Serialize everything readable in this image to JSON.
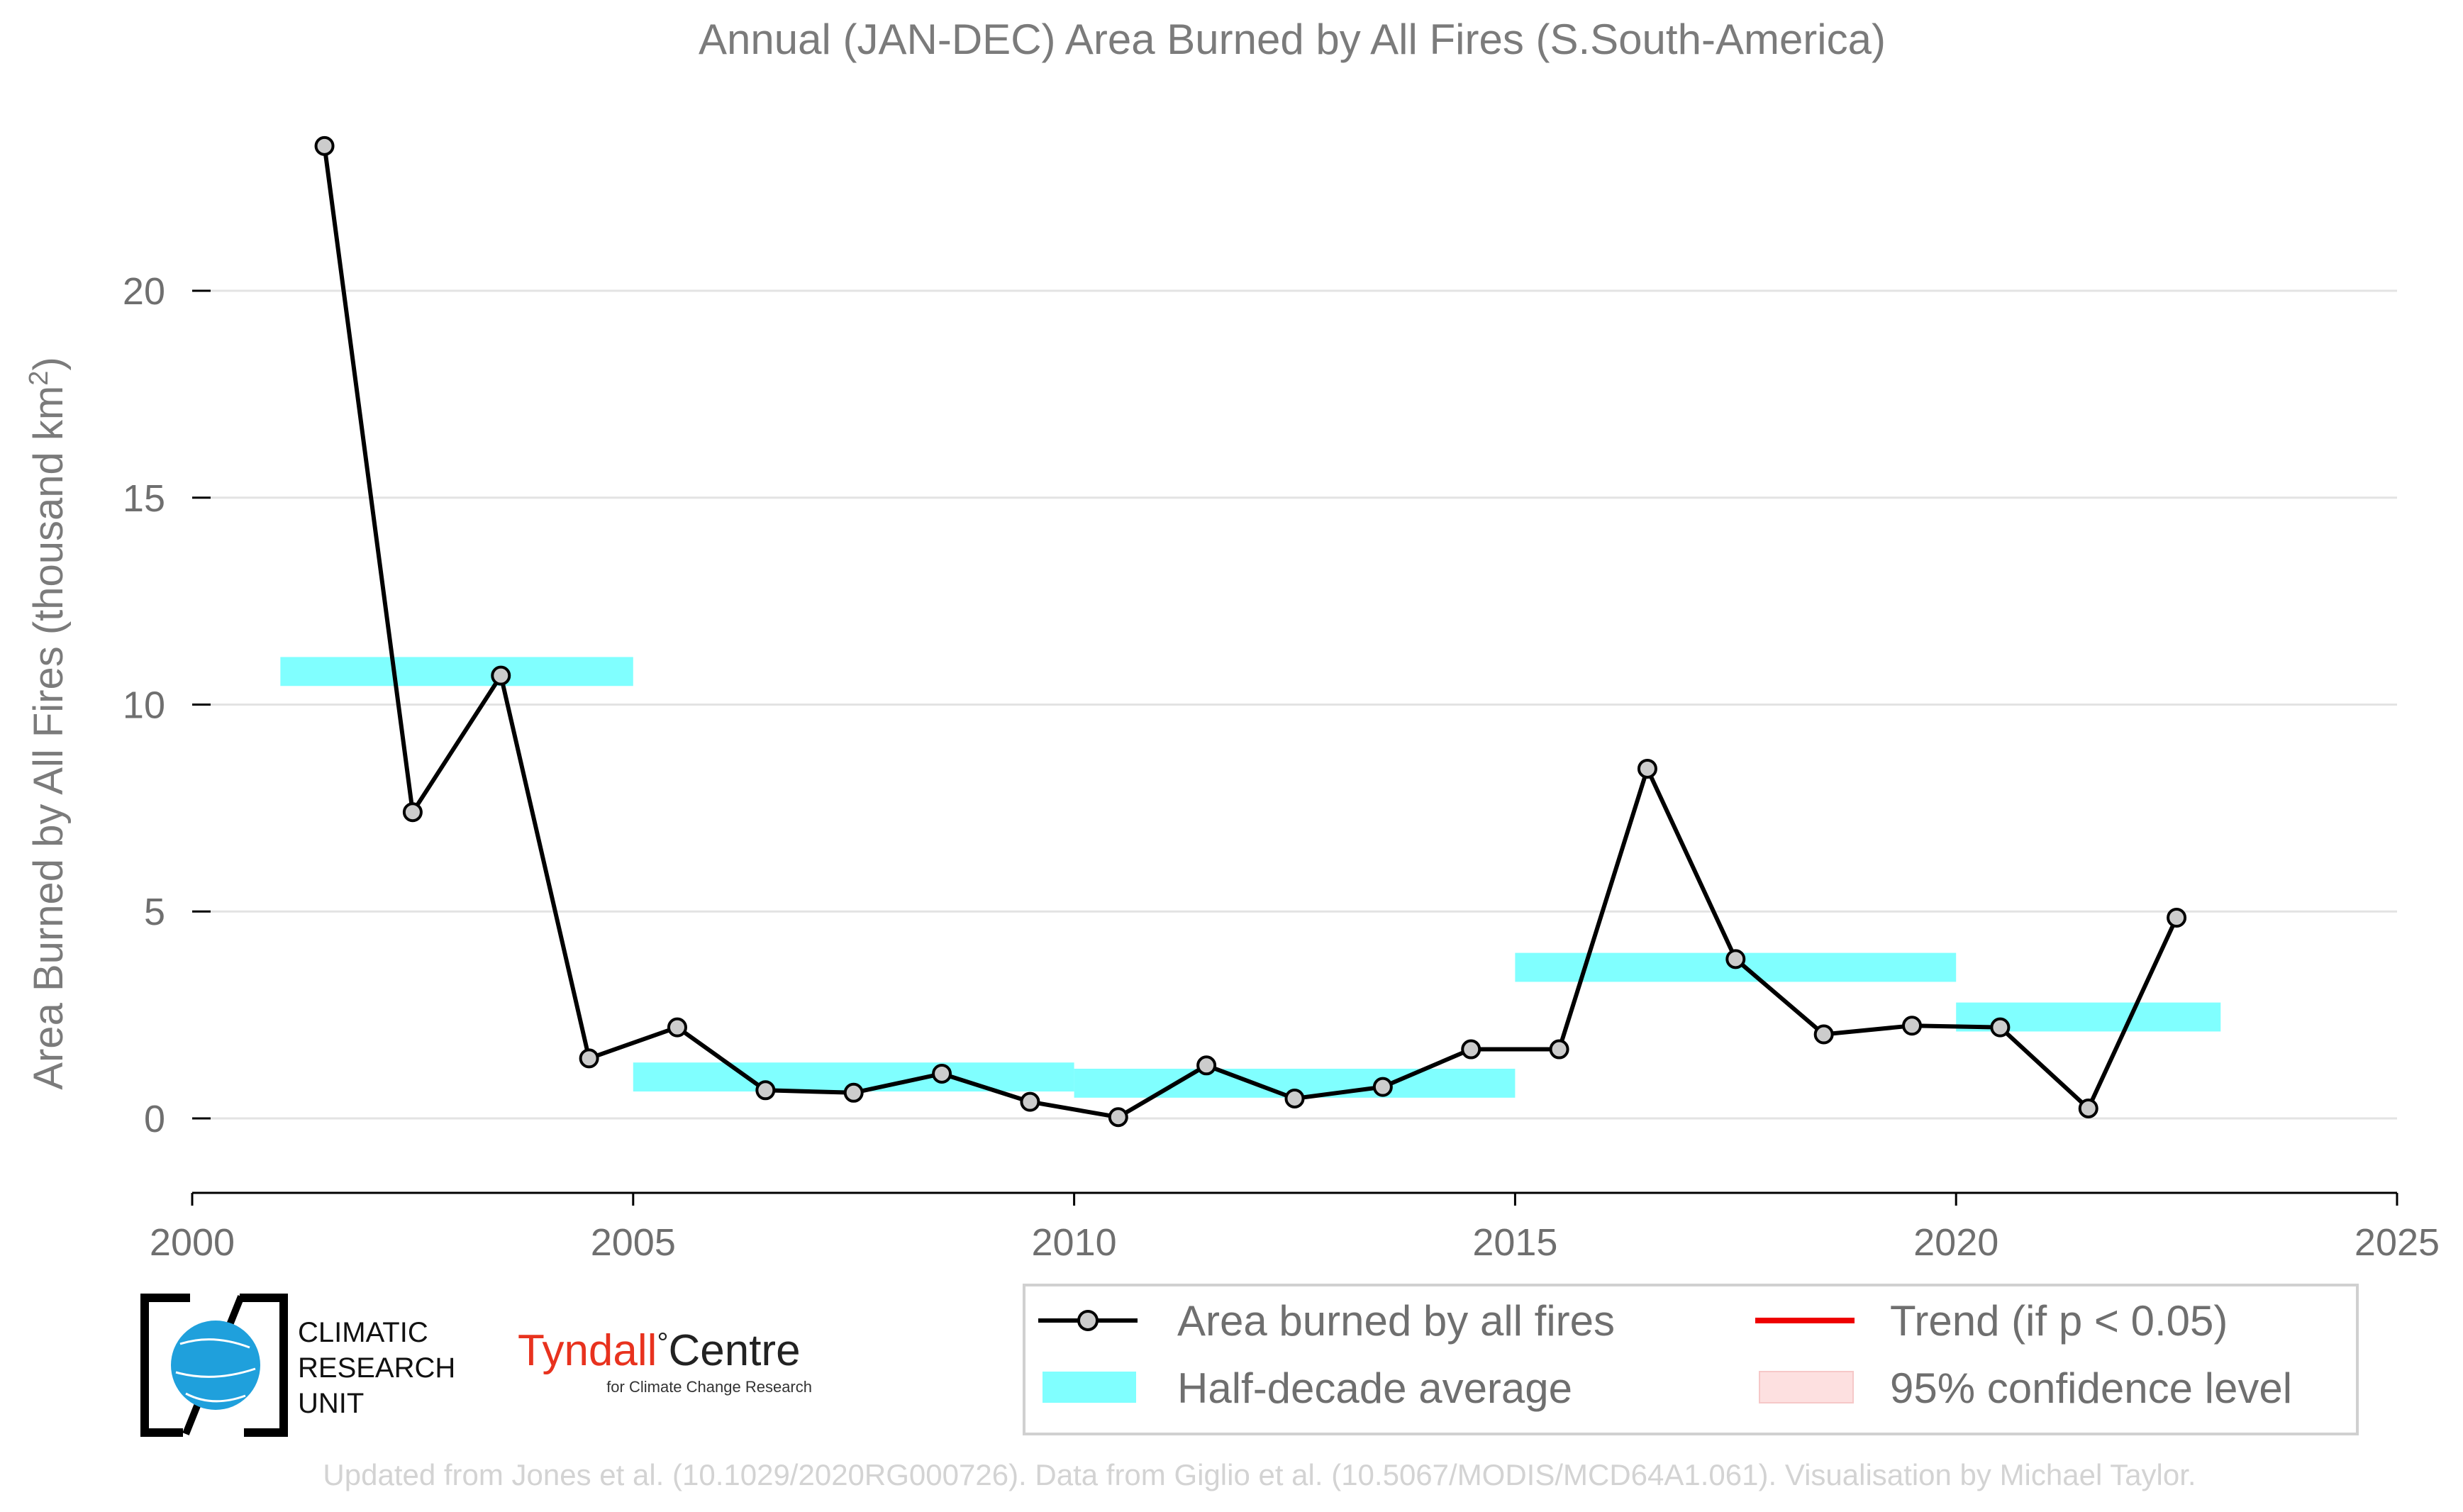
{
  "chart_data": {
    "type": "line",
    "title": "Annual (JAN-DEC) Area Burned by All Fires (S.South-America)",
    "xlabel": "",
    "ylabel": "Area Burned by All Fires (thousand km",
    "ylabel_sup": "2",
    "ylabel_close": ")",
    "xlim": [
      2000,
      2025
    ],
    "ylim": [
      -1.8,
      24.8
    ],
    "x_ticks": [
      2000,
      2005,
      2010,
      2015,
      2020,
      2025
    ],
    "y_ticks": [
      0,
      5,
      10,
      15,
      20
    ],
    "grid": true,
    "legend_position": "bottom-right",
    "series": [
      {
        "name": "Area burned by all fires",
        "type": "line",
        "color": "#000000",
        "marker_fill": "#cccccc",
        "x": [
          2001.5,
          2002.5,
          2003.5,
          2004.5,
          2005.5,
          2006.5,
          2007.5,
          2008.5,
          2009.5,
          2010.5,
          2011.5,
          2012.5,
          2013.5,
          2014.5,
          2015.5,
          2016.5,
          2017.5,
          2018.5,
          2019.5,
          2020.5,
          2021.5,
          2022.5
        ],
        "values": [
          23.5,
          7.4,
          10.7,
          1.45,
          2.2,
          0.68,
          0.62,
          1.08,
          0.4,
          0.03,
          1.28,
          0.48,
          0.76,
          1.67,
          1.67,
          8.45,
          3.85,
          2.03,
          2.24,
          2.2,
          0.24,
          4.85
        ]
      },
      {
        "name": "Half-decade average",
        "type": "band",
        "color": "#80ffff",
        "segments": [
          {
            "x_start": 2001,
            "x_end": 2005,
            "value": 10.8
          },
          {
            "x_start": 2005,
            "x_end": 2010,
            "value": 1.0
          },
          {
            "x_start": 2010,
            "x_end": 2015,
            "value": 0.85
          },
          {
            "x_start": 2015,
            "x_end": 2020,
            "value": 3.65
          },
          {
            "x_start": 2020,
            "x_end": 2023,
            "value": 2.45
          }
        ]
      }
    ],
    "legend": [
      {
        "key": "area",
        "label": "Area burned by all fires",
        "style": "line-marker",
        "color": "#000000"
      },
      {
        "key": "trend",
        "label": "Trend (if p < 0.05)",
        "style": "line",
        "color": "#ee0000"
      },
      {
        "key": "halfdecade",
        "label": "Half-decade average",
        "style": "patch",
        "color": "#80ffff"
      },
      {
        "key": "ci",
        "label": "95% confidence level",
        "style": "patch",
        "color": "#fde0e0"
      }
    ]
  },
  "logos": {
    "cru_lines": [
      "CLIMATIC",
      "RESEARCH",
      "UNIT"
    ],
    "tyndall_name": "Tyndall",
    "tyndall_degree": "°",
    "tyndall_centre": "Centre",
    "tyndall_sub": "for Climate Change Research",
    "tyndall_color": "#e8321e"
  },
  "credit": "Updated from Jones et al. (10.1029/2020RG000726). Data from Giglio et al. (10.5067/MODIS/MCD64A1.061). Visualisation by Michael Taylor."
}
